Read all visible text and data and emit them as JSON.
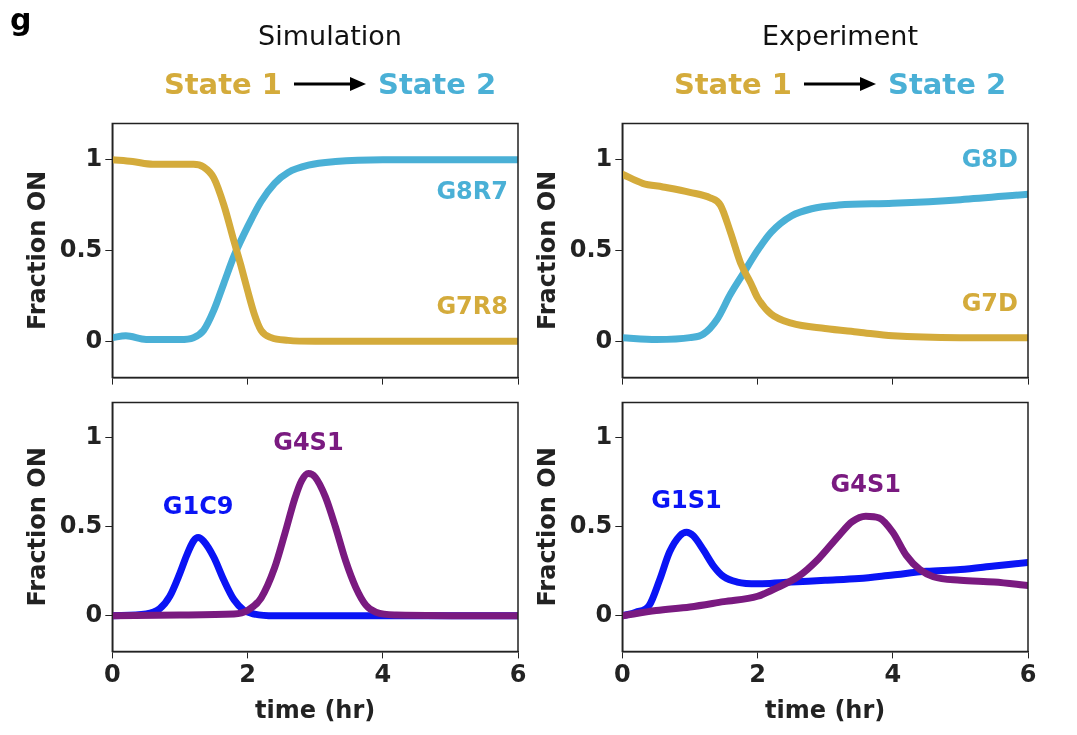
{
  "chart_data": [
    {
      "type": "other",
      "title": "g"
    },
    {
      "type": "line",
      "title": "Simulation",
      "annotations": [
        "State 1",
        "State 2"
      ],
      "ylabel": "Fraction ON",
      "xlim": [
        0,
        6
      ],
      "xticks": [
        0,
        2,
        4,
        6
      ],
      "ylim": [
        -0.2,
        1.2
      ],
      "yticks": [
        0,
        0.5,
        1
      ],
      "tick_labels": "y",
      "grid": false,
      "legend": false,
      "marker": "none",
      "line_style": "solid",
      "series": [
        {
          "name": "G7R8",
          "color": "#d4ab3b",
          "x": [
            0,
            0.3,
            0.6,
            1.0,
            1.2,
            1.35,
            1.5,
            1.65,
            1.8,
            1.9,
            2.0,
            2.1,
            2.2,
            2.35,
            2.6,
            3,
            6
          ],
          "values": [
            1.0,
            0.99,
            0.975,
            0.975,
            0.975,
            0.96,
            0.9,
            0.75,
            0.55,
            0.42,
            0.28,
            0.15,
            0.06,
            0.02,
            0.005,
            0,
            0
          ]
        },
        {
          "name": "G8R7",
          "color": "#4ab0d6",
          "x": [
            0,
            0.2,
            0.5,
            1.0,
            1.2,
            1.35,
            1.5,
            1.65,
            1.8,
            2.0,
            2.2,
            2.4,
            2.6,
            2.9,
            3.3,
            4,
            6
          ],
          "values": [
            0.02,
            0.03,
            0.01,
            0.01,
            0.02,
            0.06,
            0.17,
            0.32,
            0.47,
            0.63,
            0.77,
            0.87,
            0.93,
            0.97,
            0.99,
            1.0,
            1.0
          ]
        }
      ]
    },
    {
      "type": "line",
      "title": "Experiment",
      "annotations": [
        "State 1",
        "State 2"
      ],
      "ylabel": "Fraction ON",
      "xlim": [
        0,
        6
      ],
      "xticks": [
        0,
        2,
        4,
        6
      ],
      "ylim": [
        -0.2,
        1.2
      ],
      "yticks": [
        0,
        0.5,
        1
      ],
      "tick_labels": "y",
      "grid": false,
      "legend": false,
      "marker": "none",
      "line_style": "solid",
      "series": [
        {
          "name": "G7D",
          "color": "#d4ab3b",
          "x": [
            0,
            0.3,
            0.6,
            1.0,
            1.3,
            1.45,
            1.6,
            1.75,
            1.9,
            2.0,
            2.2,
            2.5,
            3.0,
            3.5,
            4,
            5,
            6
          ],
          "values": [
            0.92,
            0.87,
            0.85,
            0.82,
            0.79,
            0.75,
            0.6,
            0.43,
            0.32,
            0.24,
            0.15,
            0.1,
            0.07,
            0.05,
            0.03,
            0.02,
            0.02
          ]
        },
        {
          "name": "G8D",
          "color": "#4ab0d6",
          "x": [
            0,
            0.5,
            1.0,
            1.2,
            1.4,
            1.6,
            1.8,
            2.0,
            2.2,
            2.5,
            2.8,
            3.2,
            4,
            5,
            6
          ],
          "values": [
            0.02,
            0.01,
            0.02,
            0.04,
            0.12,
            0.26,
            0.38,
            0.5,
            0.6,
            0.69,
            0.73,
            0.75,
            0.76,
            0.78,
            0.81
          ]
        }
      ]
    },
    {
      "type": "line",
      "xlabel": "time (hr)",
      "ylabel": "Fraction ON",
      "xlim": [
        0,
        6
      ],
      "xticks": [
        0,
        2,
        4,
        6
      ],
      "ylim": [
        -0.2,
        1.2
      ],
      "yticks": [
        0,
        0.5,
        1
      ],
      "grid": false,
      "legend": false,
      "marker": "none",
      "line_style": "solid",
      "series": [
        {
          "name": "G4S1",
          "color": "#7a1a80",
          "x": [
            0,
            1,
            1.8,
            2.0,
            2.2,
            2.4,
            2.55,
            2.7,
            2.8,
            2.9,
            3.0,
            3.15,
            3.3,
            3.45,
            3.6,
            3.75,
            3.9,
            4.2,
            6
          ],
          "values": [
            0,
            0.005,
            0.01,
            0.03,
            0.1,
            0.27,
            0.46,
            0.66,
            0.76,
            0.8,
            0.78,
            0.67,
            0.5,
            0.31,
            0.16,
            0.06,
            0.02,
            0.005,
            0
          ]
        },
        {
          "name": "G1C9",
          "color": "#0a14f5",
          "x": [
            0,
            0.5,
            0.7,
            0.85,
            1.0,
            1.1,
            1.2,
            1.27,
            1.35,
            1.5,
            1.65,
            1.8,
            1.95,
            2.1,
            2.4,
            6
          ],
          "values": [
            0,
            0.01,
            0.04,
            0.11,
            0.24,
            0.34,
            0.42,
            0.44,
            0.42,
            0.33,
            0.2,
            0.09,
            0.03,
            0.01,
            0,
            0
          ]
        }
      ]
    },
    {
      "type": "line",
      "xlabel": "time (hr)",
      "ylabel": "Fraction ON",
      "xlim": [
        0,
        6
      ],
      "xticks": [
        0,
        2,
        4,
        6
      ],
      "ylim": [
        -0.2,
        1.2
      ],
      "yticks": [
        0,
        0.5,
        1
      ],
      "grid": false,
      "legend": false,
      "marker": "none",
      "line_style": "solid",
      "series": [
        {
          "name": "G4S1",
          "color": "#7a1a80",
          "x": [
            0,
            0.5,
            1,
            1.5,
            2.0,
            2.3,
            2.6,
            2.9,
            3.2,
            3.4,
            3.6,
            3.8,
            4.0,
            4.2,
            4.4,
            4.6,
            5,
            5.5,
            6
          ],
          "values": [
            0.0,
            0.03,
            0.05,
            0.08,
            0.11,
            0.16,
            0.22,
            0.32,
            0.45,
            0.53,
            0.56,
            0.55,
            0.47,
            0.34,
            0.26,
            0.22,
            0.2,
            0.19,
            0.17
          ]
        },
        {
          "name": "G1S1",
          "color": "#0a14f5",
          "x": [
            0,
            0.2,
            0.4,
            0.55,
            0.7,
            0.85,
            0.95,
            1.05,
            1.2,
            1.35,
            1.5,
            1.7,
            2.0,
            2.5,
            3,
            3.5,
            4,
            4.5,
            5,
            5.5,
            6
          ],
          "values": [
            0.0,
            0.02,
            0.06,
            0.2,
            0.36,
            0.45,
            0.47,
            0.45,
            0.37,
            0.28,
            0.22,
            0.19,
            0.18,
            0.19,
            0.2,
            0.21,
            0.23,
            0.25,
            0.26,
            0.28,
            0.3
          ]
        }
      ]
    }
  ]
}
